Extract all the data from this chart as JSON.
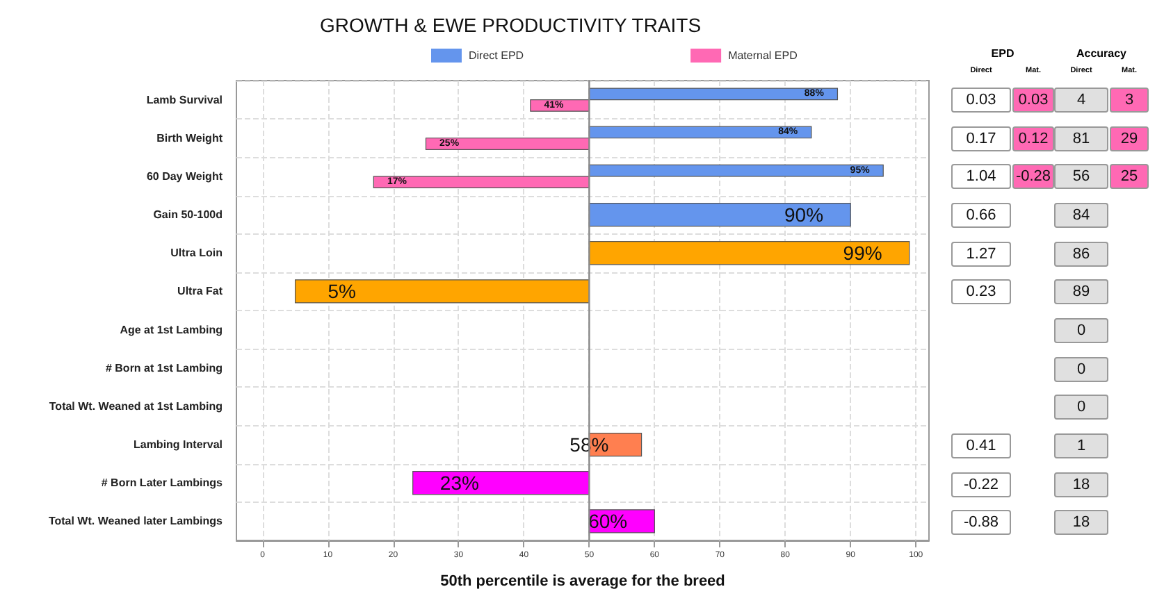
{
  "chart_data": [
    {
      "type": "bar",
      "orientation": "horizontal",
      "title": "GROWTH & EWE PRODUCTIVITY TRAITS",
      "xlabel": "50th percentile is average for the breed",
      "categories": [
        "Lamb Survival",
        "Birth Weight",
        "60 Day Weight",
        "Gain 50-100d",
        "Ultra Loin",
        "Ultra Fat",
        "Age at 1st Lambing",
        "# Born at 1st Lambing",
        "Total Wt. Weaned at 1st Lambing",
        "Lambing Interval",
        "# Born Later Lambings",
        "Total Wt. Weaned later Lambings"
      ],
      "series": [
        {
          "name": "Direct EPD",
          "color": "#6495ed",
          "base": [
            50,
            50,
            50,
            50,
            50,
            50,
            null,
            null,
            null,
            50,
            50,
            50
          ],
          "colors": [
            "#6495ed",
            "#6495ed",
            "#6495ed",
            "#6495ed",
            "#ffa500",
            "#ffa500",
            null,
            null,
            null,
            "#ff7f50",
            "#ff00ff",
            "#ff00ff"
          ],
          "values": [
            38,
            34,
            45,
            40,
            49,
            -45,
            null,
            null,
            null,
            8,
            -27,
            10
          ],
          "value_labels": [
            "88%",
            "84%",
            "95%",
            "90%",
            "99%",
            "5%",
            null,
            null,
            null,
            "58%",
            "23%",
            "60%"
          ]
        },
        {
          "name": "Maternal EPD",
          "color": "#ff69b4",
          "base": [
            50,
            50,
            50,
            null,
            null,
            null,
            null,
            null,
            null,
            null,
            null,
            null
          ],
          "values": [
            -9,
            -25,
            -33,
            null,
            null,
            null,
            null,
            null,
            null,
            null,
            null,
            null
          ],
          "value_labels": [
            "41%",
            "25%",
            "17%",
            null,
            null,
            null,
            null,
            null,
            null,
            null,
            null,
            null
          ]
        }
      ],
      "xlim": [
        -4,
        102
      ],
      "xticks": [
        0,
        10,
        20,
        30,
        40,
        50,
        60,
        70,
        80,
        90,
        100
      ],
      "ref_lines": [
        {
          "axis": "x",
          "value": 50,
          "color": "#888888"
        }
      ],
      "grid": true,
      "legend": "top"
    },
    {
      "type": "heatmap",
      "y_categories": [
        null,
        null,
        null,
        null,
        null,
        null,
        null,
        null,
        null,
        null,
        null,
        null
      ],
      "annotations": [
        "EPD",
        "Accuracy"
      ],
      "categories": [
        "Direct",
        "Mat.",
        "Direct",
        "Mat."
      ],
      "colors": [
        "#ffffff",
        "#ff69b4",
        "#e0e0e0",
        "#ff69b4"
      ],
      "cells": [
        [
          0.03,
          0.03,
          4,
          3
        ],
        [
          0.17,
          0.12,
          81,
          29
        ],
        [
          1.04,
          -0.28,
          56,
          25
        ],
        [
          0.66,
          null,
          84,
          null
        ],
        [
          1.27,
          null,
          86,
          null
        ],
        [
          0.23,
          null,
          89,
          null
        ],
        [
          null,
          null,
          0,
          null
        ],
        [
          null,
          null,
          0,
          null
        ],
        [
          null,
          null,
          0,
          null
        ],
        [
          0.41,
          null,
          1,
          null
        ],
        [
          -0.22,
          null,
          18,
          null
        ],
        [
          -0.88,
          null,
          18,
          null
        ]
      ],
      "cell_labels": [
        [
          "0.03",
          "0.03",
          "4",
          "3"
        ],
        [
          "0.17",
          "0.12",
          "81",
          "29"
        ],
        [
          "1.04",
          "-0.28",
          "56",
          "25"
        ],
        [
          "0.66",
          null,
          "84",
          null
        ],
        [
          "1.27",
          null,
          "86",
          null
        ],
        [
          "0.23",
          null,
          "89",
          null
        ],
        [
          null,
          null,
          "0",
          null
        ],
        [
          null,
          null,
          "0",
          null
        ],
        [
          null,
          null,
          "0",
          null
        ],
        [
          "0.41",
          null,
          "1",
          null
        ],
        [
          "-0.22",
          null,
          "18",
          null
        ],
        [
          "-0.88",
          null,
          "18",
          null
        ]
      ]
    }
  ]
}
